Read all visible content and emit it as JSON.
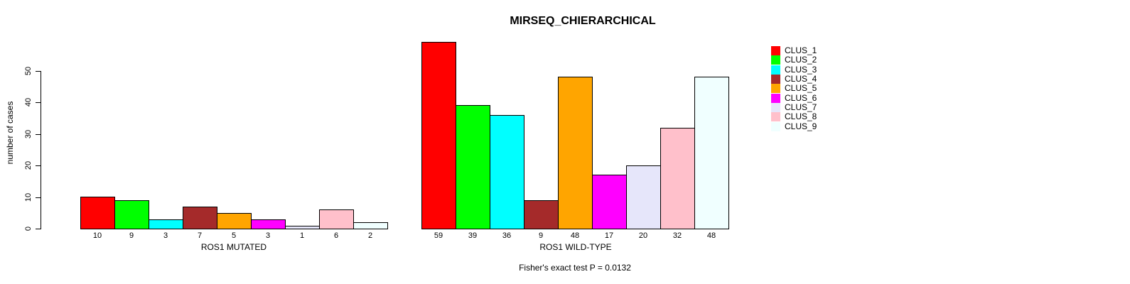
{
  "chart_data": {
    "type": "bar",
    "title": "MIRSEQ_CHIERARCHICAL",
    "ylabel": "number of cases",
    "yticks": [
      0,
      10,
      20,
      30,
      40,
      50
    ],
    "ylim": [
      0,
      59
    ],
    "grid": false,
    "legend_position": "right",
    "bar_border_color": "#000000",
    "panels": [
      {
        "xlabel": "ROS1 MUTATED",
        "categories": [
          "10",
          "9",
          "3",
          "7",
          "5",
          "3",
          "1",
          "6",
          "2"
        ],
        "values": [
          10,
          9,
          3,
          7,
          5,
          3,
          1,
          6,
          2
        ]
      },
      {
        "xlabel": "ROS1 WILD-TYPE",
        "categories": [
          "59",
          "39",
          "36",
          "9",
          "48",
          "17",
          "20",
          "32",
          "48"
        ],
        "values": [
          59,
          39,
          36,
          9,
          48,
          17,
          20,
          32,
          48
        ]
      }
    ],
    "legend": [
      {
        "label": "CLUS_1",
        "color": "#FF0000"
      },
      {
        "label": "CLUS_2",
        "color": "#00FF00"
      },
      {
        "label": "CLUS_3",
        "color": "#00FFFF"
      },
      {
        "label": "CLUS_4",
        "color": "#A52A2A"
      },
      {
        "label": "CLUS_5",
        "color": "#FFA500"
      },
      {
        "label": "CLUS_6",
        "color": "#FF00FF"
      },
      {
        "label": "CLUS_7",
        "color": "#E6E6FA"
      },
      {
        "label": "CLUS_8",
        "color": "#FFC0CB"
      },
      {
        "label": "CLUS_9",
        "color": "#F0FFFF"
      }
    ],
    "annotation": "Fisher's exact test P = 0.0132"
  }
}
